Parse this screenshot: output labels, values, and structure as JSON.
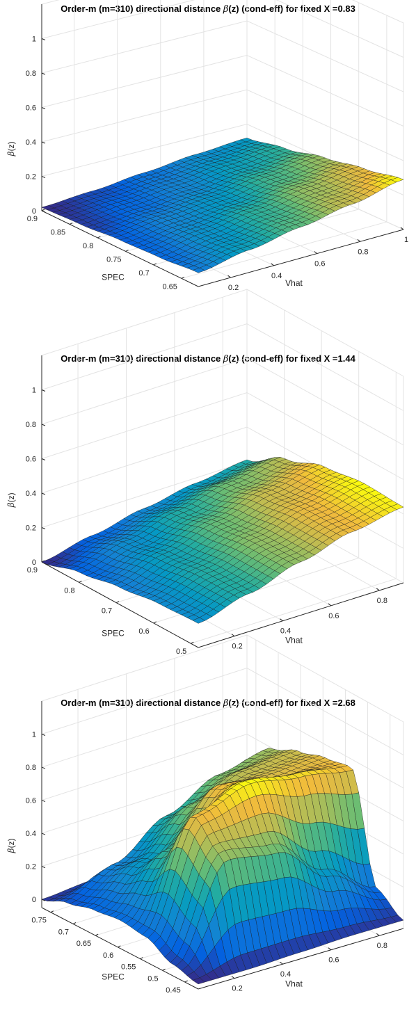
{
  "chart_data": [
    {
      "type": "surface",
      "title_prefix": "Order-m (m=310) directional distance ",
      "title_symbol": "β",
      "title_suffix": "(z) (cond-eff) for fixed X =0.83",
      "xlabel": "SPEC",
      "ylabel": "Vhat",
      "zlabel_symbol": "β",
      "zlabel_suffix": "(z)",
      "xlim": [
        0.62,
        0.9
      ],
      "ylim": [
        0.05,
        1.0
      ],
      "zlim": [
        0,
        1.2
      ],
      "x_ticks": [
        "0.65",
        "0.7",
        "0.75",
        "0.8",
        "0.85",
        "0.9"
      ],
      "y_ticks": [
        "0.2",
        "0.4",
        "0.6",
        "0.8",
        "1"
      ],
      "z_ticks": [
        "0",
        "0.2",
        "0.4",
        "0.6",
        "0.8",
        "1"
      ],
      "x_tick_values": [
        0.65,
        0.7,
        0.75,
        0.8,
        0.85,
        0.9
      ],
      "y_tick_values": [
        0.2,
        0.4,
        0.6,
        0.8,
        1.0
      ],
      "z_tick_values": [
        0,
        0.2,
        0.4,
        0.6,
        0.8,
        1
      ],
      "grid": true,
      "surface_grid": [
        [
          0.02,
          0.04,
          0.07,
          0.1,
          0.12
        ],
        [
          0.03,
          0.06,
          0.09,
          0.13,
          0.16
        ],
        [
          0.05,
          0.09,
          0.12,
          0.17,
          0.21
        ],
        [
          0.06,
          0.11,
          0.16,
          0.21,
          0.25
        ],
        [
          0.08,
          0.13,
          0.18,
          0.23,
          0.29
        ]
      ]
    },
    {
      "type": "surface",
      "title_prefix": "Order-m (m=310) directional distance ",
      "title_symbol": "β",
      "title_suffix": "(z) (cond-eff) for fixed X =1.44",
      "xlabel": "SPEC",
      "ylabel": "Vhat",
      "zlabel_symbol": "β",
      "zlabel_suffix": "(z)",
      "xlim": [
        0.48,
        0.9
      ],
      "ylim": [
        0.05,
        0.9
      ],
      "zlim": [
        0,
        1.2
      ],
      "x_ticks": [
        "0.5",
        "0.6",
        "0.7",
        "0.8",
        "0.9"
      ],
      "y_ticks": [
        "0.2",
        "0.4",
        "0.6",
        "0.8"
      ],
      "z_ticks": [
        "0",
        "0.2",
        "0.4",
        "0.6",
        "0.8",
        "1"
      ],
      "x_tick_values": [
        0.5,
        0.6,
        0.7,
        0.8,
        0.9
      ],
      "y_tick_values": [
        0.2,
        0.4,
        0.6,
        0.8
      ],
      "z_tick_values": [
        0,
        0.2,
        0.4,
        0.6,
        0.8,
        1
      ],
      "grid": true,
      "surface_grid": [
        [
          0.0,
          0.06,
          0.12,
          0.17,
          0.21
        ],
        [
          0.06,
          0.14,
          0.22,
          0.29,
          0.34
        ],
        [
          0.1,
          0.19,
          0.28,
          0.36,
          0.42
        ],
        [
          0.13,
          0.22,
          0.31,
          0.39,
          0.45
        ],
        [
          0.14,
          0.22,
          0.31,
          0.39,
          0.44
        ]
      ]
    },
    {
      "type": "surface",
      "title_prefix": "Order-m (m=310) directional distance ",
      "title_symbol": "β",
      "title_suffix": "(z) (cond-eff) for fixed X =2.68",
      "xlabel": "SPEC",
      "ylabel": "Vhat",
      "zlabel_symbol": "β",
      "zlabel_suffix": "(z)",
      "xlim": [
        0.42,
        0.77
      ],
      "ylim": [
        0.05,
        0.9
      ],
      "zlim": [
        -0.05,
        1.2
      ],
      "x_ticks": [
        "0.45",
        "0.5",
        "0.55",
        "0.6",
        "0.65",
        "0.7",
        "0.75"
      ],
      "y_ticks": [
        "0.2",
        "0.4",
        "0.6",
        "0.8"
      ],
      "z_ticks": [
        "0",
        "0.2",
        "0.4",
        "0.6",
        "0.8",
        "1"
      ],
      "x_tick_values": [
        0.45,
        0.5,
        0.55,
        0.6,
        0.65,
        0.7,
        0.75
      ],
      "y_tick_values": [
        0.2,
        0.4,
        0.6,
        0.8
      ],
      "z_tick_values": [
        0,
        0.2,
        0.4,
        0.6,
        0.8,
        1
      ],
      "grid": true,
      "surface_grid": [
        [
          0.0,
          0.02,
          0.05,
          0.15,
          0.45
        ],
        [
          0.06,
          0.2,
          0.4,
          0.55,
          0.6
        ],
        [
          0.1,
          0.3,
          0.55,
          0.65,
          0.67
        ],
        [
          0.12,
          0.45,
          0.75,
          0.7,
          0.72
        ],
        [
          0.1,
          0.75,
          0.85,
          0.8,
          0.75
        ],
        [
          0.02,
          0.6,
          0.55,
          0.3,
          0.1
        ],
        [
          -0.02,
          -0.02,
          -0.01,
          0.0,
          0.0
        ]
      ]
    }
  ]
}
